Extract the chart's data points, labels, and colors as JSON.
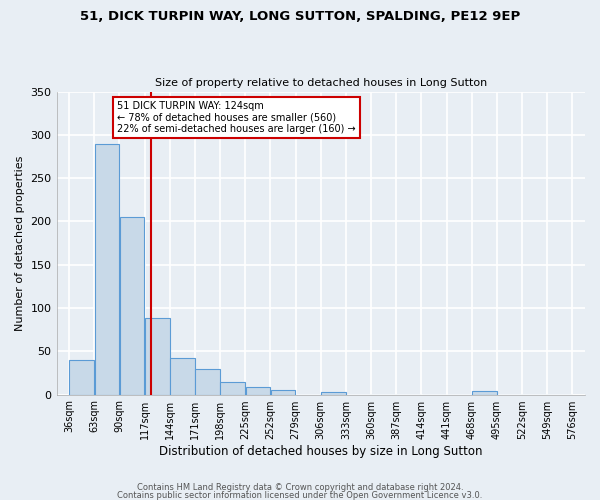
{
  "title1": "51, DICK TURPIN WAY, LONG SUTTON, SPALDING, PE12 9EP",
  "title2": "Size of property relative to detached houses in Long Sutton",
  "xlabel": "Distribution of detached houses by size in Long Sutton",
  "ylabel": "Number of detached properties",
  "bin_edges": [
    36,
    63,
    90,
    117,
    144,
    171,
    198,
    225,
    252,
    279,
    306,
    333,
    360,
    387,
    414,
    441,
    468,
    495,
    522,
    549,
    576
  ],
  "bar_heights": [
    40,
    290,
    205,
    88,
    42,
    30,
    15,
    9,
    5,
    0,
    3,
    0,
    0,
    0,
    0,
    0,
    4,
    0,
    0,
    0
  ],
  "bar_color": "#c8d9e8",
  "bar_edge_color": "#5b9bd5",
  "vline_x": 124,
  "vline_color": "#cc0000",
  "annotation_line1": "51 DICK TURPIN WAY: 124sqm",
  "annotation_line2": "← 78% of detached houses are smaller (560)",
  "annotation_line3": "22% of semi-detached houses are larger (160) →",
  "box_edge_color": "#cc0000",
  "ylim": [
    0,
    350
  ],
  "yticks": [
    0,
    50,
    100,
    150,
    200,
    250,
    300,
    350
  ],
  "footer1": "Contains HM Land Registry data © Crown copyright and database right 2024.",
  "footer2": "Contains public sector information licensed under the Open Government Licence v3.0.",
  "bg_color": "#e8eef4",
  "grid_color": "#ffffff"
}
